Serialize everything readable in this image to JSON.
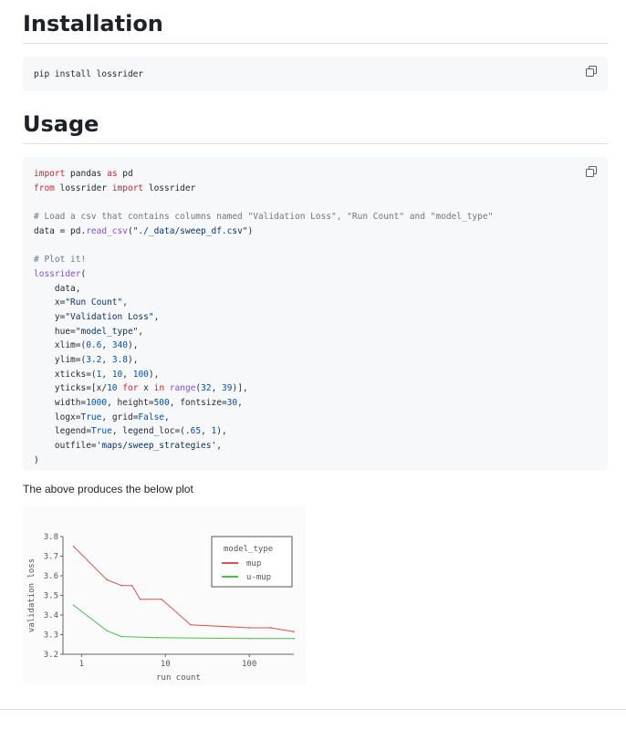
{
  "installation": {
    "title": "Installation",
    "code": "pip install lossrider"
  },
  "usage": {
    "title": "Usage",
    "code_lines": [
      [
        {
          "t": "import",
          "k": "k"
        },
        {
          "t": " pandas "
        },
        {
          "t": "as",
          "k": "k"
        },
        {
          "t": " pd"
        }
      ],
      [
        {
          "t": "from",
          "k": "k"
        },
        {
          "t": " lossrider "
        },
        {
          "t": "import",
          "k": "k"
        },
        {
          "t": " lossrider"
        }
      ],
      [],
      [
        {
          "t": "# Load a csv that contains columns named \"Validation Loss\", \"Run Count\" and \"model_type\"",
          "k": "c"
        }
      ],
      [
        {
          "t": "data = pd."
        },
        {
          "t": "read_csv",
          "k": "f"
        },
        {
          "t": "("
        },
        {
          "t": "\"./_data/sweep_df.csv\"",
          "k": "s"
        },
        {
          "t": ")"
        }
      ],
      [],
      [
        {
          "t": "# Plot it!",
          "k": "c"
        }
      ],
      [
        {
          "t": "lossrider",
          "k": "f"
        },
        {
          "t": "("
        }
      ],
      [
        {
          "t": "    data,"
        }
      ],
      [
        {
          "t": "    x="
        },
        {
          "t": "\"Run Count\"",
          "k": "s"
        },
        {
          "t": ","
        }
      ],
      [
        {
          "t": "    y="
        },
        {
          "t": "\"Validation Loss\"",
          "k": "s"
        },
        {
          "t": ","
        }
      ],
      [
        {
          "t": "    hue="
        },
        {
          "t": "\"model_type\"",
          "k": "s"
        },
        {
          "t": ","
        }
      ],
      [
        {
          "t": "    xlim=("
        },
        {
          "t": "0.6",
          "k": "n"
        },
        {
          "t": ", "
        },
        {
          "t": "340",
          "k": "n"
        },
        {
          "t": "),"
        }
      ],
      [
        {
          "t": "    ylim=("
        },
        {
          "t": "3.2",
          "k": "n"
        },
        {
          "t": ", "
        },
        {
          "t": "3.8",
          "k": "n"
        },
        {
          "t": "),"
        }
      ],
      [
        {
          "t": "    xticks=("
        },
        {
          "t": "1",
          "k": "n"
        },
        {
          "t": ", "
        },
        {
          "t": "10",
          "k": "n"
        },
        {
          "t": ", "
        },
        {
          "t": "100",
          "k": "n"
        },
        {
          "t": "),"
        }
      ],
      [
        {
          "t": "    yticks=[x/"
        },
        {
          "t": "10",
          "k": "n"
        },
        {
          "t": " "
        },
        {
          "t": "for",
          "k": "k"
        },
        {
          "t": " x "
        },
        {
          "t": "in",
          "k": "k"
        },
        {
          "t": " "
        },
        {
          "t": "range",
          "k": "f"
        },
        {
          "t": "("
        },
        {
          "t": "32",
          "k": "n"
        },
        {
          "t": ", "
        },
        {
          "t": "39",
          "k": "n"
        },
        {
          "t": ")],"
        }
      ],
      [
        {
          "t": "    width="
        },
        {
          "t": "1000",
          "k": "n"
        },
        {
          "t": ", height="
        },
        {
          "t": "500",
          "k": "n"
        },
        {
          "t": ", fontsize="
        },
        {
          "t": "30",
          "k": "n"
        },
        {
          "t": ","
        }
      ],
      [
        {
          "t": "    logx="
        },
        {
          "t": "True",
          "k": "n"
        },
        {
          "t": ", grid="
        },
        {
          "t": "False",
          "k": "n"
        },
        {
          "t": ","
        }
      ],
      [
        {
          "t": "    legend="
        },
        {
          "t": "True",
          "k": "n"
        },
        {
          "t": ", legend_loc=(."
        },
        {
          "t": "65",
          "k": "n"
        },
        {
          "t": ", "
        },
        {
          "t": "1",
          "k": "n"
        },
        {
          "t": "),"
        }
      ],
      [
        {
          "t": "    outfile="
        },
        {
          "t": "'maps/sweep_strategies'",
          "k": "s"
        },
        {
          "t": ","
        }
      ],
      [
        {
          "t": ")"
        }
      ]
    ]
  },
  "caption": "The above produces the below plot",
  "chart_data": {
    "type": "line",
    "xlabel": "run count",
    "ylabel": "validation loss",
    "xscale": "log",
    "xlim": [
      0.6,
      340
    ],
    "ylim": [
      3.2,
      3.8
    ],
    "xticks": [
      1,
      10,
      100
    ],
    "yticks": [
      3.2,
      3.3,
      3.4,
      3.5,
      3.6,
      3.7,
      3.8
    ],
    "grid": false,
    "legend_title": "model_type",
    "legend_loc": "top-right",
    "series": [
      {
        "name": "mup",
        "color": "#d9534f",
        "x": [
          0.8,
          2,
          3,
          4,
          5,
          9,
          20,
          100,
          180,
          340
        ],
        "y": [
          3.75,
          3.58,
          3.55,
          3.55,
          3.48,
          3.48,
          3.35,
          3.335,
          3.335,
          3.315
        ]
      },
      {
        "name": "u-mup",
        "color": "#4cc04c",
        "x": [
          0.8,
          2,
          3,
          8,
          100,
          340
        ],
        "y": [
          3.45,
          3.32,
          3.29,
          3.285,
          3.28,
          3.28
        ]
      }
    ]
  }
}
